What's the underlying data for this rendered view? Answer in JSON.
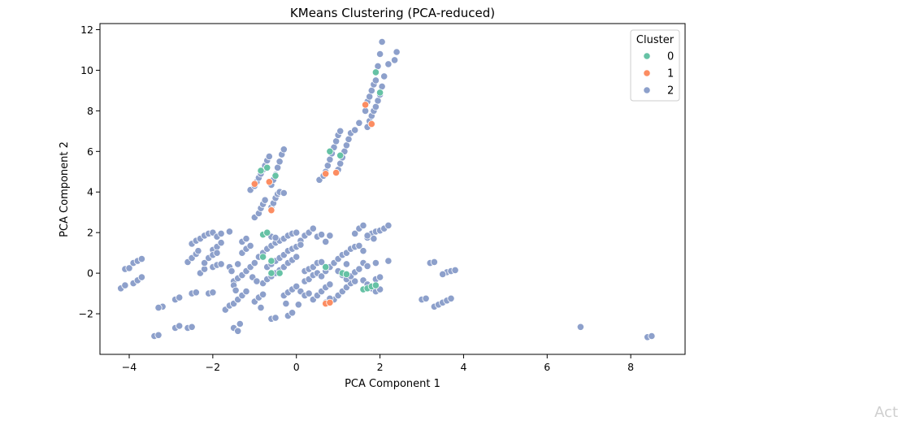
{
  "chart_data": {
    "type": "scatter",
    "title": "KMeans Clustering (PCA-reduced)",
    "xlabel": "PCA Component 1",
    "ylabel": "PCA Component 2",
    "xlim": [
      -4.7,
      9.3
    ],
    "ylim": [
      -4.0,
      12.3
    ],
    "xticks": [
      -4,
      -2,
      0,
      2,
      4,
      6,
      8
    ],
    "yticks": [
      -2,
      0,
      2,
      4,
      6,
      8,
      10,
      12
    ],
    "xtick_labels": [
      "−4",
      "−2",
      "0",
      "2",
      "4",
      "6",
      "8"
    ],
    "ytick_labels": [
      "−2",
      "0",
      "2",
      "4",
      "6",
      "8",
      "10",
      "12"
    ],
    "grid": false,
    "legend": {
      "title": "Cluster",
      "placement": "upper right"
    },
    "series": [
      {
        "name": "2",
        "color": "#8da0cb",
        "points": [
          [
            -4.1,
            0.2
          ],
          [
            -4.0,
            0.25
          ],
          [
            -3.9,
            0.5
          ],
          [
            -3.8,
            0.6
          ],
          [
            -3.7,
            0.7
          ],
          [
            -4.2,
            -0.75
          ],
          [
            -4.1,
            -0.6
          ],
          [
            -3.9,
            -0.5
          ],
          [
            -3.8,
            -0.35
          ],
          [
            -3.7,
            -0.2
          ],
          [
            -3.4,
            -3.1
          ],
          [
            -3.3,
            -3.05
          ],
          [
            -3.2,
            -1.65
          ],
          [
            -3.3,
            -1.7
          ],
          [
            -2.9,
            -2.7
          ],
          [
            -2.8,
            -2.6
          ],
          [
            -2.6,
            -2.7
          ],
          [
            -2.5,
            -2.65
          ],
          [
            -2.9,
            -1.3
          ],
          [
            -2.8,
            -1.2
          ],
          [
            -2.5,
            -1.0
          ],
          [
            -2.4,
            -0.95
          ],
          [
            -2.1,
            -1.0
          ],
          [
            -2.0,
            -0.95
          ],
          [
            -2.6,
            0.55
          ],
          [
            -2.5,
            0.75
          ],
          [
            -2.4,
            0.95
          ],
          [
            -2.35,
            1.1
          ],
          [
            -2.5,
            1.45
          ],
          [
            -2.4,
            1.6
          ],
          [
            -2.3,
            1.7
          ],
          [
            -2.2,
            1.85
          ],
          [
            -2.1,
            1.95
          ],
          [
            -2.0,
            2.0
          ],
          [
            -1.9,
            1.8
          ],
          [
            -1.8,
            1.95
          ],
          [
            -1.6,
            2.05
          ],
          [
            -2.0,
            1.15
          ],
          [
            -1.9,
            1.3
          ],
          [
            -1.8,
            1.5
          ],
          [
            -2.3,
            0.0
          ],
          [
            -2.2,
            0.2
          ],
          [
            -2.0,
            0.3
          ],
          [
            -1.9,
            0.4
          ],
          [
            -1.8,
            0.45
          ],
          [
            -2.2,
            0.5
          ],
          [
            -2.1,
            0.75
          ],
          [
            -2.0,
            0.9
          ],
          [
            -1.9,
            1.0
          ],
          [
            -1.7,
            -1.8
          ],
          [
            -1.6,
            -1.6
          ],
          [
            -1.5,
            -1.5
          ],
          [
            -1.4,
            -1.3
          ],
          [
            -1.5,
            -2.7
          ],
          [
            -1.4,
            -2.85
          ],
          [
            -1.35,
            -2.5
          ],
          [
            -1.3,
            -1.1
          ],
          [
            -1.2,
            -0.9
          ],
          [
            -1.5,
            -0.4
          ],
          [
            -1.4,
            -0.25
          ],
          [
            -1.3,
            -0.1
          ],
          [
            -1.2,
            0.1
          ],
          [
            -1.1,
            0.3
          ],
          [
            -1.0,
            0.5
          ],
          [
            -1.3,
            1.0
          ],
          [
            -1.2,
            1.2
          ],
          [
            -1.1,
            1.35
          ],
          [
            -1.3,
            1.55
          ],
          [
            -1.2,
            1.7
          ],
          [
            -1.4,
            0.45
          ],
          [
            -1.5,
            -0.6
          ],
          [
            -1.45,
            -0.85
          ],
          [
            -1.0,
            -1.4
          ],
          [
            -0.9,
            -1.2
          ],
          [
            -0.8,
            -1.05
          ],
          [
            -0.6,
            -2.25
          ],
          [
            -0.5,
            -2.2
          ],
          [
            -0.2,
            -2.1
          ],
          [
            -0.1,
            -1.95
          ],
          [
            -0.3,
            -1.1
          ],
          [
            -0.2,
            -0.95
          ],
          [
            -0.1,
            -0.8
          ],
          [
            0.0,
            -0.65
          ],
          [
            0.1,
            -0.9
          ],
          [
            0.2,
            -1.1
          ],
          [
            0.3,
            -1.0
          ],
          [
            -0.8,
            -0.5
          ],
          [
            -0.7,
            -0.3
          ],
          [
            -0.6,
            -0.15
          ],
          [
            -0.5,
            0.0
          ],
          [
            -0.4,
            0.15
          ],
          [
            -0.3,
            0.3
          ],
          [
            -0.2,
            0.5
          ],
          [
            -0.1,
            0.65
          ],
          [
            0.0,
            0.8
          ],
          [
            -0.7,
            0.3
          ],
          [
            -0.6,
            0.45
          ],
          [
            -0.5,
            0.6
          ],
          [
            -0.4,
            0.75
          ],
          [
            -0.3,
            0.9
          ],
          [
            -0.9,
            0.8
          ],
          [
            -0.8,
            1.0
          ],
          [
            -0.7,
            1.2
          ],
          [
            -0.6,
            1.35
          ],
          [
            -0.5,
            1.5
          ],
          [
            -0.4,
            1.6
          ],
          [
            -0.3,
            1.7
          ],
          [
            -0.6,
            1.8
          ],
          [
            -0.5,
            1.75
          ],
          [
            -0.2,
            1.85
          ],
          [
            -0.1,
            1.95
          ],
          [
            0.0,
            2.0
          ],
          [
            0.1,
            1.6
          ],
          [
            0.2,
            1.85
          ],
          [
            0.3,
            2.0
          ],
          [
            0.4,
            2.2
          ],
          [
            -0.2,
            1.1
          ],
          [
            -0.1,
            1.2
          ],
          [
            0.0,
            1.3
          ],
          [
            0.1,
            1.4
          ],
          [
            0.2,
            0.1
          ],
          [
            0.3,
            0.2
          ],
          [
            0.4,
            0.3
          ],
          [
            0.5,
            0.5
          ],
          [
            0.6,
            0.55
          ],
          [
            0.2,
            -0.4
          ],
          [
            0.3,
            -0.3
          ],
          [
            0.4,
            -0.1
          ],
          [
            0.5,
            0.0
          ],
          [
            0.6,
            -0.15
          ],
          [
            0.4,
            -1.3
          ],
          [
            0.5,
            -1.1
          ],
          [
            0.6,
            -0.9
          ],
          [
            0.7,
            -0.7
          ],
          [
            0.8,
            -0.55
          ],
          [
            0.9,
            -1.3
          ],
          [
            1.0,
            -1.1
          ],
          [
            1.1,
            -0.9
          ],
          [
            1.2,
            -0.7
          ],
          [
            1.3,
            -0.5
          ],
          [
            1.4,
            -0.4
          ],
          [
            0.7,
            -1.45
          ],
          [
            0.8,
            -1.25
          ],
          [
            0.7,
            0.1
          ],
          [
            0.8,
            0.3
          ],
          [
            0.9,
            0.5
          ],
          [
            1.0,
            0.7
          ],
          [
            1.1,
            0.9
          ],
          [
            1.2,
            1.0
          ],
          [
            1.3,
            1.2
          ],
          [
            1.4,
            1.3
          ],
          [
            1.5,
            1.35
          ],
          [
            1.6,
            1.1
          ],
          [
            0.7,
            1.55
          ],
          [
            0.8,
            1.85
          ],
          [
            1.0,
            0.1
          ],
          [
            1.1,
            -0.1
          ],
          [
            1.2,
            -0.3
          ],
          [
            1.3,
            -0.15
          ],
          [
            1.4,
            0.05
          ],
          [
            1.5,
            0.2
          ],
          [
            1.6,
            -0.35
          ],
          [
            1.7,
            -0.55
          ],
          [
            1.8,
            -0.75
          ],
          [
            1.9,
            -0.9
          ],
          [
            2.0,
            -0.8
          ],
          [
            1.6,
            0.5
          ],
          [
            1.7,
            0.35
          ],
          [
            1.9,
            0.5
          ],
          [
            2.2,
            0.6
          ],
          [
            1.4,
            1.95
          ],
          [
            1.5,
            2.2
          ],
          [
            1.6,
            2.35
          ],
          [
            1.7,
            1.75
          ],
          [
            1.8,
            1.95
          ],
          [
            1.9,
            2.05
          ],
          [
            2.0,
            2.1
          ],
          [
            2.1,
            2.2
          ],
          [
            2.2,
            2.35
          ],
          [
            1.9,
            -0.3
          ],
          [
            2.0,
            -0.2
          ],
          [
            -1.1,
            4.1
          ],
          [
            -1.0,
            4.3
          ],
          [
            -0.95,
            4.5
          ],
          [
            -0.9,
            4.7
          ],
          [
            -0.85,
            4.9
          ],
          [
            -0.8,
            5.1
          ],
          [
            -0.75,
            5.3
          ],
          [
            -0.7,
            5.55
          ],
          [
            -0.65,
            5.75
          ],
          [
            -0.6,
            4.35
          ],
          [
            -0.55,
            4.6
          ],
          [
            -0.5,
            4.85
          ],
          [
            -0.45,
            5.2
          ],
          [
            -0.4,
            5.5
          ],
          [
            -0.35,
            5.85
          ],
          [
            -0.3,
            6.1
          ],
          [
            -1.0,
            2.75
          ],
          [
            -0.9,
            2.95
          ],
          [
            -0.85,
            3.2
          ],
          [
            -0.8,
            3.4
          ],
          [
            -0.75,
            3.6
          ],
          [
            -0.6,
            3.25
          ],
          [
            -0.55,
            3.45
          ],
          [
            -0.5,
            3.7
          ],
          [
            -0.45,
            3.9
          ],
          [
            -0.4,
            4.0
          ],
          [
            -0.3,
            3.95
          ],
          [
            0.55,
            4.6
          ],
          [
            0.65,
            4.8
          ],
          [
            0.7,
            5.0
          ],
          [
            0.75,
            5.3
          ],
          [
            0.8,
            5.6
          ],
          [
            0.85,
            5.9
          ],
          [
            0.9,
            6.2
          ],
          [
            0.95,
            6.5
          ],
          [
            1.0,
            6.8
          ],
          [
            1.05,
            7.0
          ],
          [
            1.0,
            5.1
          ],
          [
            1.05,
            5.4
          ],
          [
            1.1,
            5.7
          ],
          [
            1.15,
            6.0
          ],
          [
            1.2,
            6.3
          ],
          [
            1.25,
            6.6
          ],
          [
            1.3,
            6.9
          ],
          [
            1.4,
            7.05
          ],
          [
            1.5,
            7.4
          ],
          [
            1.7,
            7.2
          ],
          [
            1.75,
            7.5
          ],
          [
            1.8,
            7.75
          ],
          [
            1.85,
            8.0
          ],
          [
            1.9,
            8.2
          ],
          [
            1.95,
            8.5
          ],
          [
            2.0,
            8.8
          ],
          [
            2.05,
            9.2
          ],
          [
            2.1,
            9.7
          ],
          [
            1.7,
            8.45
          ],
          [
            1.75,
            8.7
          ],
          [
            1.8,
            9.0
          ],
          [
            1.85,
            9.3
          ],
          [
            1.9,
            9.5
          ],
          [
            1.65,
            8.0
          ],
          [
            2.2,
            10.3
          ],
          [
            2.35,
            10.5
          ],
          [
            2.4,
            10.9
          ],
          [
            2.0,
            10.8
          ],
          [
            2.05,
            11.4
          ],
          [
            1.95,
            10.2
          ],
          [
            3.0,
            -1.3
          ],
          [
            3.1,
            -1.25
          ],
          [
            3.2,
            0.5
          ],
          [
            3.3,
            0.55
          ],
          [
            3.3,
            -1.65
          ],
          [
            3.4,
            -1.55
          ],
          [
            3.5,
            -1.45
          ],
          [
            3.6,
            -1.35
          ],
          [
            3.7,
            -1.25
          ],
          [
            3.6,
            0.05
          ],
          [
            3.7,
            0.1
          ],
          [
            3.8,
            0.15
          ],
          [
            3.5,
            -0.05
          ],
          [
            6.8,
            -2.65
          ],
          [
            8.4,
            -3.15
          ],
          [
            8.5,
            -3.1
          ],
          [
            1.7,
            1.85
          ],
          [
            1.85,
            1.7
          ],
          [
            -1.05,
            -0.2
          ],
          [
            -0.95,
            -0.4
          ],
          [
            -1.6,
            0.3
          ],
          [
            -1.55,
            0.1
          ],
          [
            0.5,
            1.8
          ],
          [
            0.6,
            1.9
          ],
          [
            1.2,
            0.45
          ],
          [
            -0.25,
            -1.5
          ],
          [
            0.05,
            -1.55
          ],
          [
            -0.85,
            -1.7
          ]
        ]
      },
      {
        "name": "0",
        "color": "#66c2a5",
        "points": [
          [
            -0.8,
            1.9
          ],
          [
            -0.7,
            2.0
          ],
          [
            -0.8,
            0.8
          ],
          [
            -0.6,
            0.6
          ],
          [
            -0.6,
            0.0
          ],
          [
            -0.4,
            0.0
          ],
          [
            1.1,
            0.0
          ],
          [
            1.2,
            -0.05
          ],
          [
            1.6,
            -0.8
          ],
          [
            1.7,
            -0.75
          ],
          [
            1.8,
            -0.65
          ],
          [
            1.9,
            -0.6
          ],
          [
            0.8,
            6.0
          ],
          [
            1.05,
            5.8
          ],
          [
            1.9,
            9.9
          ],
          [
            2.0,
            8.9
          ],
          [
            -0.85,
            5.05
          ],
          [
            -0.5,
            4.8
          ],
          [
            -0.7,
            5.2
          ],
          [
            0.7,
            0.3
          ]
        ]
      },
      {
        "name": "1",
        "color": "#fc8d62",
        "points": [
          [
            0.7,
            -1.5
          ],
          [
            0.8,
            -1.45
          ],
          [
            -1.0,
            4.4
          ],
          [
            -0.65,
            4.5
          ],
          [
            0.7,
            4.9
          ],
          [
            0.95,
            4.95
          ],
          [
            1.65,
            8.3
          ],
          [
            1.8,
            7.35
          ],
          [
            -0.6,
            3.1
          ]
        ]
      }
    ]
  },
  "watermark": "Act"
}
